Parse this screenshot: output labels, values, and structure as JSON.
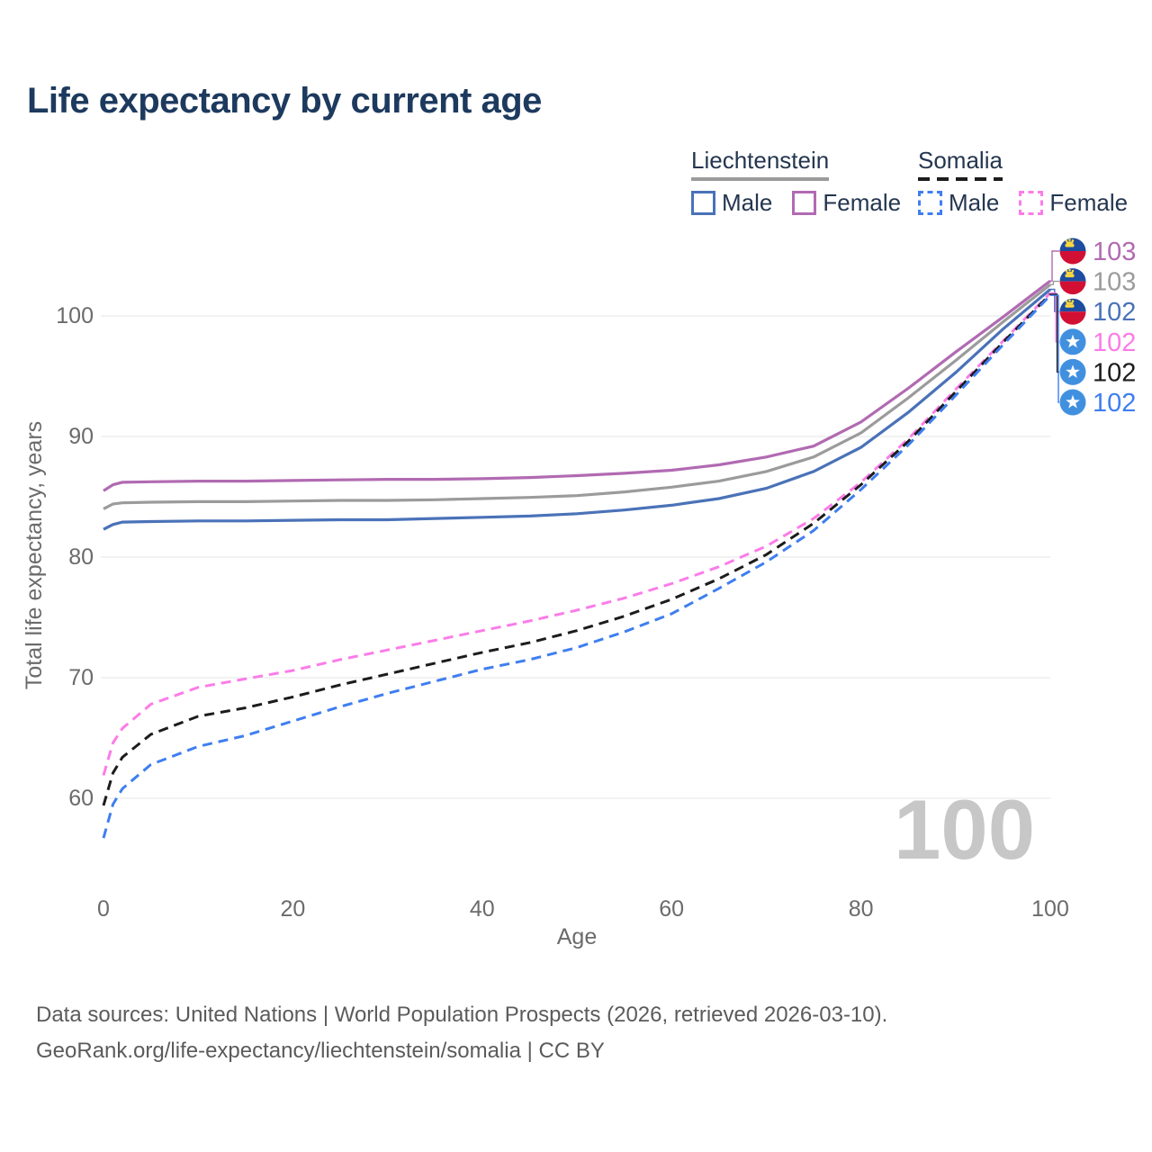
{
  "title": "Life expectancy by current age",
  "legend": {
    "groups": [
      {
        "name": "Liechtenstein",
        "style": "solid",
        "items": [
          {
            "label": "Male"
          },
          {
            "label": "Female"
          }
        ]
      },
      {
        "name": "Somalia",
        "style": "dashed",
        "items": [
          {
            "label": "Male"
          },
          {
            "label": "Female"
          }
        ]
      }
    ]
  },
  "watermark": "100",
  "footer": {
    "line1": "Data sources: United Nations | World Population Prospects (2026, retrieved 2026-03-10).",
    "line2": "GeoRank.org/life-expectancy/liechtenstein/somalia | CC BY"
  },
  "colors": {
    "title": "#1d3a5e",
    "axis_text": "#6b6b6b",
    "gridline": "#e4e4e4",
    "watermark": "#c7c7c7",
    "liechtenstein_flag_blue": "#1d4ca0",
    "liechtenstein_flag_red": "#d21034",
    "liechtenstein_flag_gold": "#ffd83d",
    "somalia_flag_blue": "#4190e0"
  },
  "chart_data": {
    "type": "line",
    "title": "Life expectancy by current age",
    "xlabel": "Age",
    "ylabel": "Total life expectancy, years",
    "xlim": [
      0,
      100
    ],
    "ylim": [
      55,
      105
    ],
    "xticks": [
      0,
      20,
      40,
      60,
      80,
      100
    ],
    "yticks": [
      60,
      70,
      80,
      90,
      100
    ],
    "grid": true,
    "legend_position": "top-right",
    "x": [
      0,
      1,
      2,
      5,
      10,
      15,
      20,
      25,
      30,
      35,
      40,
      45,
      50,
      55,
      60,
      65,
      70,
      75,
      80,
      85,
      90,
      95,
      100
    ],
    "series": [
      {
        "name": "Liechtenstein Female",
        "style": "solid",
        "color": "#b16ab2",
        "flag": "liechtenstein",
        "end_label": "103",
        "values": [
          85.5,
          86.0,
          86.2,
          86.25,
          86.3,
          86.3,
          86.35,
          86.4,
          86.45,
          86.45,
          86.5,
          86.6,
          86.75,
          86.95,
          87.2,
          87.65,
          88.3,
          89.2,
          91.2,
          94.0,
          97.0,
          99.9,
          102.9
        ]
      },
      {
        "name": "Liechtenstein",
        "style": "solid",
        "color": "#9b9b9b",
        "flag": "liechtenstein",
        "end_label": "103",
        "values": [
          84.0,
          84.4,
          84.5,
          84.55,
          84.6,
          84.6,
          84.65,
          84.7,
          84.7,
          84.75,
          84.85,
          84.95,
          85.1,
          85.4,
          85.8,
          86.3,
          87.1,
          88.3,
          90.3,
          93.2,
          96.3,
          99.5,
          102.6
        ]
      },
      {
        "name": "Liechtenstein Male",
        "style": "solid",
        "color": "#4a72b8",
        "flag": "liechtenstein",
        "end_label": "102",
        "values": [
          82.3,
          82.7,
          82.9,
          82.95,
          83.0,
          83.0,
          83.05,
          83.1,
          83.1,
          83.2,
          83.3,
          83.4,
          83.6,
          83.9,
          84.3,
          84.85,
          85.7,
          87.1,
          89.1,
          92.0,
          95.3,
          98.9,
          102.2
        ]
      },
      {
        "name": "Somalia Female",
        "style": "dashed",
        "color": "#fb7ce8",
        "flag": "somalia",
        "end_label": "102",
        "values": [
          61.9,
          64.6,
          65.8,
          67.8,
          69.2,
          69.9,
          70.6,
          71.5,
          72.3,
          73.1,
          73.9,
          74.7,
          75.6,
          76.6,
          77.8,
          79.2,
          80.9,
          83.2,
          86.2,
          89.8,
          93.9,
          97.9,
          101.9
        ]
      },
      {
        "name": "Somalia",
        "style": "dashed",
        "color": "#1c1c1c",
        "flag": "somalia",
        "end_label": "102",
        "values": [
          59.4,
          62.1,
          63.4,
          65.3,
          66.8,
          67.5,
          68.4,
          69.4,
          70.3,
          71.2,
          72.1,
          72.9,
          73.9,
          75.1,
          76.5,
          78.2,
          80.2,
          82.8,
          86.0,
          89.6,
          93.7,
          97.8,
          101.8
        ]
      },
      {
        "name": "Somalia Male",
        "style": "dashed",
        "color": "#3f7ef0",
        "flag": "somalia",
        "end_label": "102",
        "values": [
          56.7,
          59.5,
          60.8,
          62.8,
          64.3,
          65.2,
          66.4,
          67.6,
          68.7,
          69.7,
          70.7,
          71.5,
          72.5,
          73.8,
          75.3,
          77.4,
          79.6,
          82.2,
          85.6,
          89.3,
          93.4,
          97.6,
          101.7
        ]
      }
    ]
  }
}
